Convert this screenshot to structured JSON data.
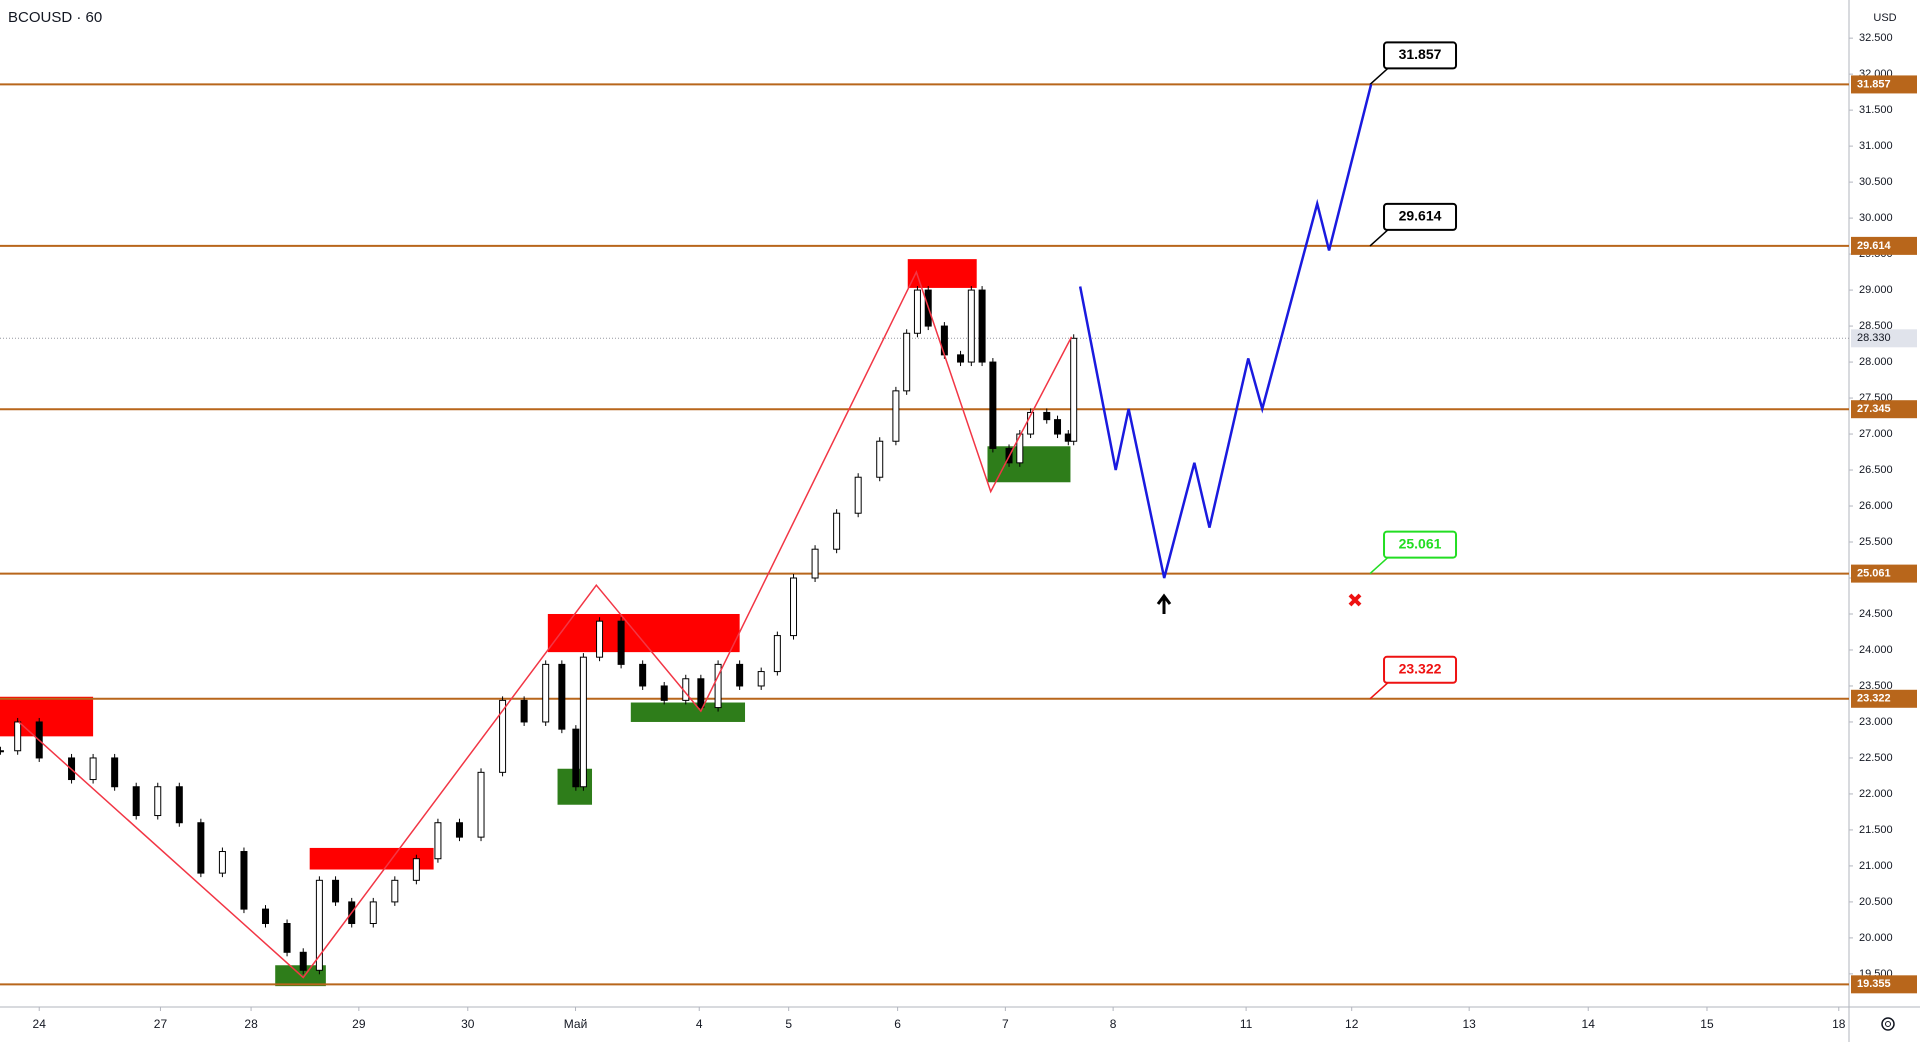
{
  "chart_data": {
    "type": "candlestick",
    "title": "BCOUSD · 60",
    "y_unit": "USD",
    "xlim": [
      -0.364,
      16.795
    ],
    "ylim": [
      19.04,
      33.03
    ],
    "xticks": [
      {
        "value": 0,
        "label": "24"
      },
      {
        "value": 1.125,
        "label": "27"
      },
      {
        "value": 1.966,
        "label": "28"
      },
      {
        "value": 2.966,
        "label": "29"
      },
      {
        "value": 3.977,
        "label": "30"
      },
      {
        "value": 4.977,
        "label": "Май"
      },
      {
        "value": 6.125,
        "label": "4"
      },
      {
        "value": 6.955,
        "label": "5"
      },
      {
        "value": 7.966,
        "label": "6"
      },
      {
        "value": 8.966,
        "label": "7"
      },
      {
        "value": 9.966,
        "label": "8"
      },
      {
        "value": 11.2,
        "label": "11"
      },
      {
        "value": 12.18,
        "label": "12"
      },
      {
        "value": 13.27,
        "label": "13"
      },
      {
        "value": 14.375,
        "label": "14"
      },
      {
        "value": 15.477,
        "label": "15"
      },
      {
        "value": 16.7,
        "label": "18"
      }
    ],
    "yticks": [
      {
        "value": 19.5,
        "label": "19.500"
      },
      {
        "value": 20,
        "label": "20.000"
      },
      {
        "value": 20.5,
        "label": "20.500"
      },
      {
        "value": 21,
        "label": "21.000"
      },
      {
        "value": 21.5,
        "label": "21.500"
      },
      {
        "value": 22,
        "label": "22.000"
      },
      {
        "value": 22.5,
        "label": "22.500"
      },
      {
        "value": 23,
        "label": "23.000"
      },
      {
        "value": 23.5,
        "label": "23.500"
      },
      {
        "value": 24,
        "label": "24.000"
      },
      {
        "value": 24.5,
        "label": "24.500"
      },
      {
        "value": 25,
        "label": "25.000"
      },
      {
        "value": 25.5,
        "label": "25.500"
      },
      {
        "value": 26,
        "label": "26.000"
      },
      {
        "value": 26.5,
        "label": "26.500"
      },
      {
        "value": 27,
        "label": "27.000"
      },
      {
        "value": 27.5,
        "label": "27.500"
      },
      {
        "value": 28,
        "label": "28.000"
      },
      {
        "value": 28.5,
        "label": "28.500"
      },
      {
        "value": 29,
        "label": "29.000"
      },
      {
        "value": 29.5,
        "label": "29.500"
      },
      {
        "value": 30,
        "label": "30.000"
      },
      {
        "value": 30.5,
        "label": "30.500"
      },
      {
        "value": 31,
        "label": "31.000"
      },
      {
        "value": 31.5,
        "label": "31.500"
      },
      {
        "value": 32,
        "label": "32.000"
      },
      {
        "value": 32.5,
        "label": "32.500"
      }
    ],
    "series": [
      {
        "name": "BCOUSD",
        "color": "#000000",
        "x": [
          -0.36,
          -0.2,
          0,
          0.3,
          0.5,
          0.7,
          0.9,
          1.1,
          1.3,
          1.5,
          1.7,
          1.9,
          2.1,
          2.3,
          2.45,
          2.6,
          2.75,
          2.9,
          3.1,
          3.3,
          3.5,
          3.7,
          3.9,
          4.1,
          4.3,
          4.5,
          4.7,
          4.85,
          4.98,
          5.05,
          5.2,
          5.4,
          5.6,
          5.8,
          6.0,
          6.14,
          6.3,
          6.5,
          6.7,
          6.85,
          7.0,
          7.2,
          7.4,
          7.6,
          7.8,
          7.95,
          8.05,
          8.15,
          8.25,
          8.4,
          8.55,
          8.65,
          8.75,
          8.85,
          9.0,
          9.1,
          9.2,
          9.35,
          9.45,
          9.55,
          9.6
        ],
        "values": [
          22.6,
          23.0,
          22.5,
          22.2,
          22.5,
          22.1,
          21.7,
          22.1,
          21.6,
          20.9,
          21.2,
          20.4,
          20.2,
          19.8,
          19.55,
          20.8,
          20.5,
          20.2,
          20.5,
          20.8,
          21.1,
          21.6,
          21.4,
          22.3,
          23.3,
          23.0,
          23.8,
          22.9,
          22.1,
          23.9,
          24.4,
          23.8,
          23.5,
          23.3,
          23.6,
          23.2,
          23.8,
          23.5,
          23.7,
          24.2,
          25.0,
          25.4,
          25.9,
          26.4,
          26.9,
          27.6,
          28.4,
          29.0,
          28.5,
          28.1,
          28.0,
          29.0,
          28.0,
          26.8,
          26.6,
          27.0,
          27.3,
          27.2,
          27.0,
          26.9,
          28.33
        ]
      },
      {
        "name": "Zigzag",
        "color": "#f23645",
        "x": [
          -0.19,
          2.45,
          5.17,
          6.14,
          8.14,
          8.83,
          9.58
        ],
        "values": [
          23.0,
          19.45,
          24.9,
          23.15,
          29.25,
          26.2,
          28.35
        ]
      },
      {
        "name": "Forecast",
        "color": "#1a1adf",
        "x": [
          9.66,
          9.99,
          10.11,
          10.44,
          10.72,
          10.86,
          11.22,
          11.35,
          11.86,
          11.97,
          12.36
        ],
        "values": [
          29.05,
          26.5,
          27.35,
          25.0,
          26.6,
          25.7,
          28.05,
          27.35,
          30.2,
          29.55,
          31.857
        ]
      }
    ],
    "zones": [
      {
        "x": [
          -0.364,
          0.5
        ],
        "y": [
          22.8,
          23.35
        ],
        "color": "#ff0000"
      },
      {
        "x": [
          2.51,
          3.66
        ],
        "y": [
          20.95,
          21.25
        ],
        "color": "#ff0000"
      },
      {
        "x": [
          4.72,
          6.5
        ],
        "y": [
          23.97,
          24.5
        ],
        "color": "#ff0000"
      },
      {
        "x": [
          8.06,
          8.7
        ],
        "y": [
          29.03,
          29.43
        ],
        "color": "#ff0000"
      },
      {
        "x": [
          2.19,
          2.66
        ],
        "y": [
          19.33,
          19.62
        ],
        "color": "#2e7d1a"
      },
      {
        "x": [
          4.81,
          5.13
        ],
        "y": [
          21.85,
          22.35
        ],
        "color": "#2e7d1a"
      },
      {
        "x": [
          5.49,
          6.55
        ],
        "y": [
          23.0,
          23.27
        ],
        "color": "#2e7d1a"
      },
      {
        "x": [
          8.8,
          9.57
        ],
        "y": [
          26.33,
          26.83
        ],
        "color": "#2e7d1a"
      }
    ],
    "levels": [
      {
        "value": 31.857,
        "callout_color": "#000000"
      },
      {
        "value": 29.614,
        "callout_color": "#000000"
      },
      {
        "value": 27.345
      },
      {
        "value": 25.061,
        "callout_color": "#22dd22"
      },
      {
        "value": 23.322,
        "callout_color": "#ee1111"
      },
      {
        "value": 19.355
      }
    ],
    "level_color": "#b8661b",
    "last_price": {
      "value": 28.33,
      "label": "28.330"
    }
  }
}
